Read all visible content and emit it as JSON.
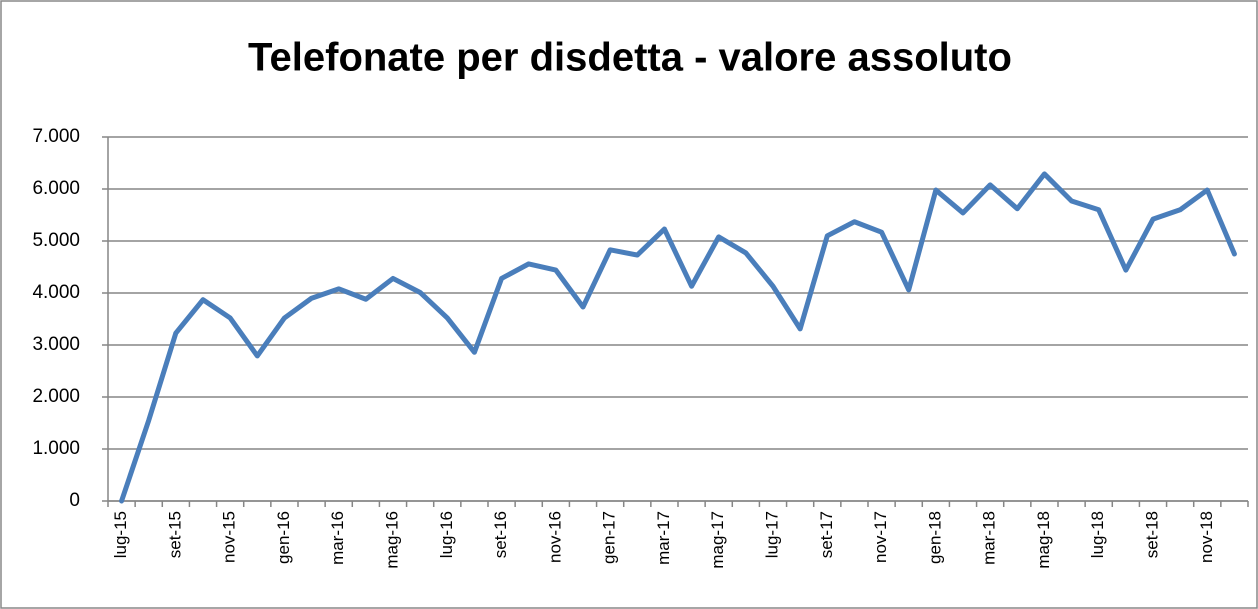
{
  "chart_data": {
    "type": "line",
    "title": "Telefonate per disdetta - valore assoluto",
    "categories": [
      "lug-15",
      null,
      "set-15",
      null,
      "nov-15",
      null,
      "gen-16",
      null,
      "mar-16",
      null,
      "mag-16",
      null,
      "lug-16",
      null,
      "set-16",
      null,
      "nov-16",
      null,
      "gen-17",
      null,
      "mar-17",
      null,
      "mag-17",
      null,
      "lug-17",
      null,
      "set-17",
      null,
      "nov-17",
      null,
      "gen-18",
      null,
      "mar-18",
      null,
      "mag-18",
      null,
      "lug-18",
      null,
      "set-18",
      null,
      "nov-18",
      null
    ],
    "values": [
      0,
      1550,
      3230,
      3870,
      3520,
      2790,
      3520,
      3900,
      4080,
      3880,
      4280,
      4010,
      3520,
      2860,
      4280,
      4560,
      4440,
      3730,
      4830,
      4730,
      5230,
      4130,
      5080,
      4770,
      4130,
      3310,
      5100,
      5370,
      5170,
      4060,
      5980,
      5540,
      6080,
      5620,
      6290,
      5770,
      5600,
      4440,
      5420,
      5600,
      5980,
      4750
    ],
    "color": "#4a7ebb",
    "ylim": [
      0,
      7000
    ],
    "yticks": [
      0,
      {
        "value": 1000,
        "label": "1.000"
      },
      {
        "value": 2000,
        "label": "2.000"
      },
      {
        "value": 3000,
        "label": "3.000"
      },
      {
        "value": 4000,
        "label": "4.000"
      },
      {
        "value": 5000,
        "label": "5.000"
      },
      {
        "value": 6000,
        "label": "6.000"
      },
      {
        "value": 7000,
        "label": "7.000"
      }
    ],
    "grid": true
  }
}
